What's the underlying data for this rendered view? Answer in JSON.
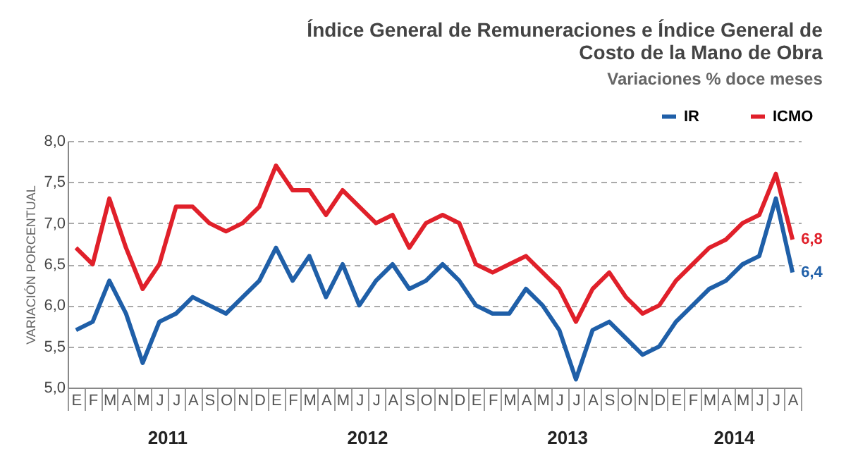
{
  "chart_data": {
    "type": "line",
    "title": "Índice General de Remuneraciones e Índice General de Costo de la Mano de Obra",
    "subtitle": "Variaciones % doce meses",
    "ylabel": "VARIACIÓN PORCENTUAL",
    "categories": [
      "E",
      "F",
      "M",
      "A",
      "M",
      "J",
      "J",
      "A",
      "S",
      "O",
      "N",
      "D",
      "E",
      "F",
      "M",
      "A",
      "M",
      "J",
      "J",
      "A",
      "S",
      "O",
      "N",
      "D",
      "E",
      "F",
      "M",
      "A",
      "M",
      "J",
      "J",
      "A",
      "S",
      "O",
      "N",
      "D",
      "E",
      "F",
      "M",
      "A",
      "M",
      "J",
      "J",
      "A"
    ],
    "annotations": [
      "2011",
      "2012",
      "2013",
      "2014"
    ],
    "series": [
      {
        "name": "IR",
        "color": "#1f5fa8",
        "values": [
          5.7,
          5.8,
          6.3,
          5.9,
          5.3,
          5.8,
          5.9,
          6.1,
          6.0,
          5.9,
          6.1,
          6.3,
          6.7,
          6.3,
          6.6,
          6.1,
          6.5,
          6.0,
          6.3,
          6.5,
          6.2,
          6.3,
          6.5,
          6.3,
          6.0,
          5.9,
          5.9,
          6.2,
          6.0,
          5.7,
          5.1,
          5.7,
          5.8,
          5.6,
          5.4,
          5.5,
          5.8,
          6.0,
          6.2,
          6.3,
          6.5,
          6.6,
          7.3,
          6.4
        ],
        "value_labels": [
          null,
          null,
          null,
          null,
          null,
          null,
          null,
          null,
          null,
          null,
          null,
          null,
          null,
          null,
          null,
          null,
          null,
          null,
          null,
          null,
          null,
          null,
          null,
          null,
          null,
          null,
          null,
          null,
          null,
          null,
          null,
          null,
          null,
          null,
          null,
          null,
          null,
          null,
          null,
          null,
          null,
          null,
          null,
          "6,4"
        ]
      },
      {
        "name": "ICMO",
        "color": "#e0202a",
        "values": [
          6.7,
          6.5,
          7.3,
          6.7,
          6.2,
          6.5,
          7.2,
          7.2,
          7.0,
          6.9,
          7.0,
          7.2,
          7.7,
          7.4,
          7.4,
          7.1,
          7.4,
          7.2,
          7.0,
          7.1,
          6.7,
          7.0,
          7.1,
          7.0,
          6.5,
          6.4,
          6.5,
          6.6,
          6.4,
          6.2,
          5.8,
          6.2,
          6.4,
          6.1,
          5.9,
          6.0,
          6.3,
          6.5,
          6.7,
          6.8,
          7.0,
          7.1,
          7.6,
          6.8
        ],
        "value_labels": [
          null,
          null,
          null,
          null,
          null,
          null,
          null,
          null,
          null,
          null,
          null,
          null,
          null,
          null,
          null,
          null,
          null,
          null,
          null,
          null,
          null,
          null,
          null,
          null,
          null,
          null,
          null,
          null,
          null,
          null,
          null,
          null,
          null,
          null,
          null,
          null,
          null,
          null,
          null,
          null,
          null,
          null,
          null,
          "6,8"
        ]
      }
    ],
    "ylim": [
      5.0,
      8.0
    ],
    "yticks": [
      {
        "value": 5.0,
        "label": "5,0"
      },
      {
        "value": 5.5,
        "label": "5,5"
      },
      {
        "value": 6.0,
        "label": "6,0"
      },
      {
        "value": 6.5,
        "label": "6,5"
      },
      {
        "value": 7.0,
        "label": "7,0"
      },
      {
        "value": 7.5,
        "label": "7,5"
      },
      {
        "value": 8.0,
        "label": "8,0"
      }
    ],
    "grid": "y",
    "legend": "top right",
    "line_style": "solid",
    "marker": "none"
  }
}
